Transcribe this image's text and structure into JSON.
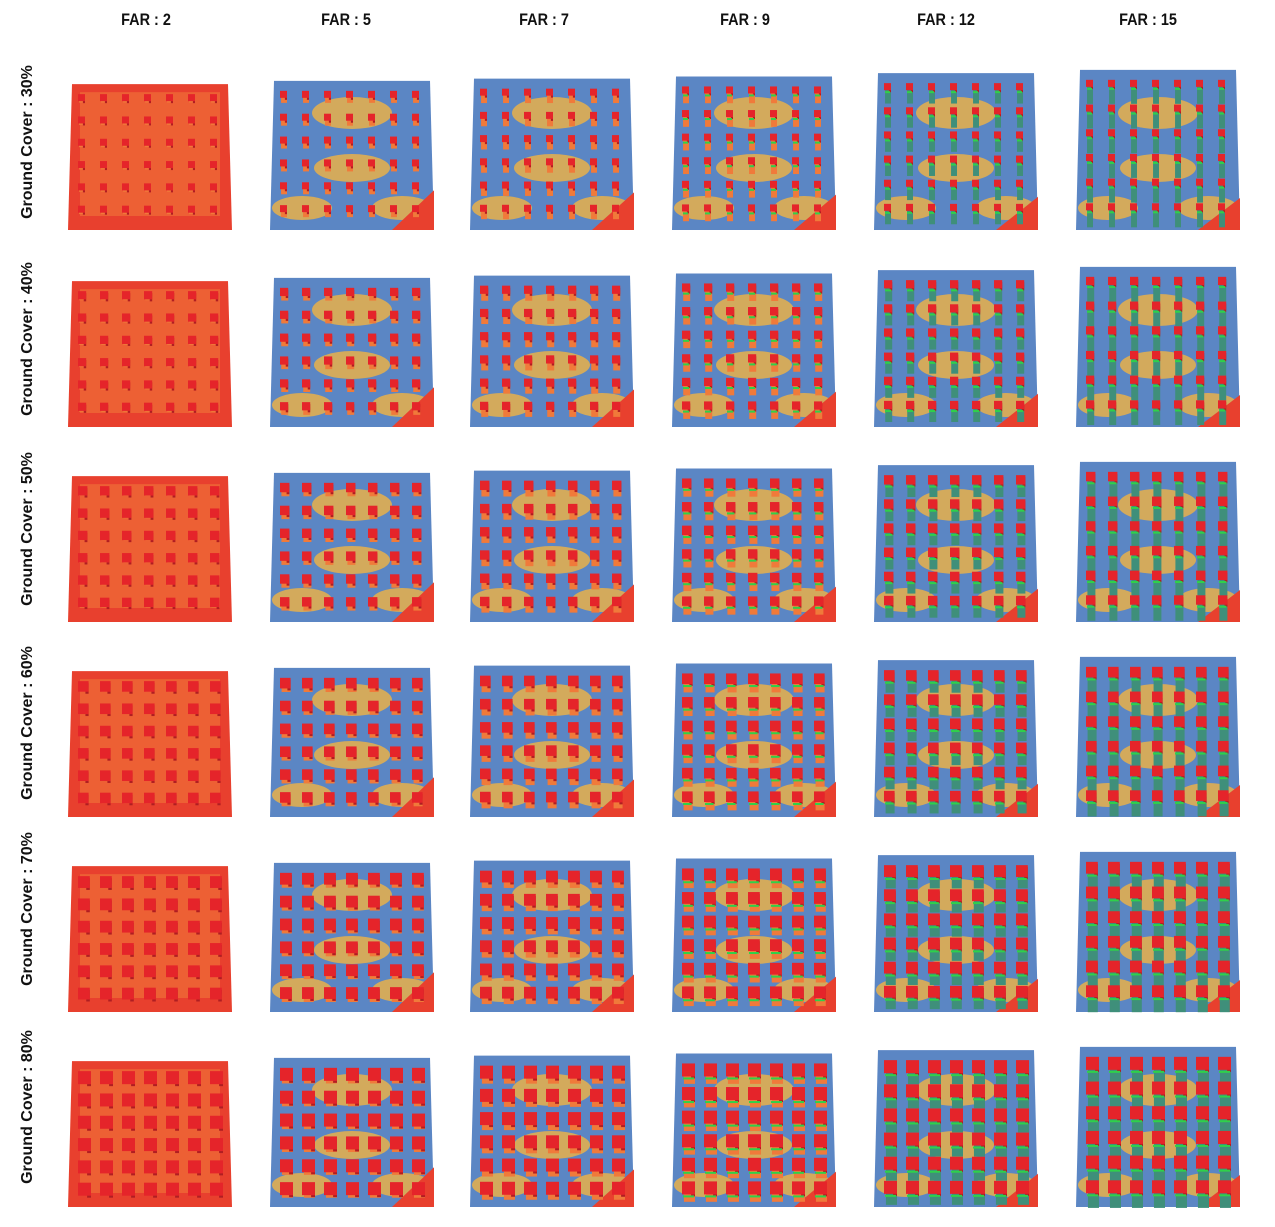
{
  "columns": [
    "FAR : 2",
    "FAR : 5",
    "FAR : 7",
    "FAR : 9",
    "FAR : 12",
    "FAR : 15"
  ],
  "rows": [
    "Ground Cover : 30%",
    "Ground Cover : 40%",
    "Ground Cover : 50%",
    "Ground Cover : 60%",
    "Ground Cover : 70%",
    "Ground Cover : 80%"
  ],
  "far_values": [
    2,
    5,
    7,
    9,
    12,
    15
  ],
  "ground_cover_percent": [
    30,
    40,
    50,
    60,
    70,
    80
  ],
  "colors": {
    "building_top": "#e5242a",
    "building_side": "#b01e22",
    "ground_hot": "#e8402e",
    "ground_warm": "#f07a3a",
    "ground_mid": "#e9b04a",
    "ground_cool": "#5b86c4",
    "ground_green": "#2fd14a",
    "column_side": "#3f8f7a"
  }
}
